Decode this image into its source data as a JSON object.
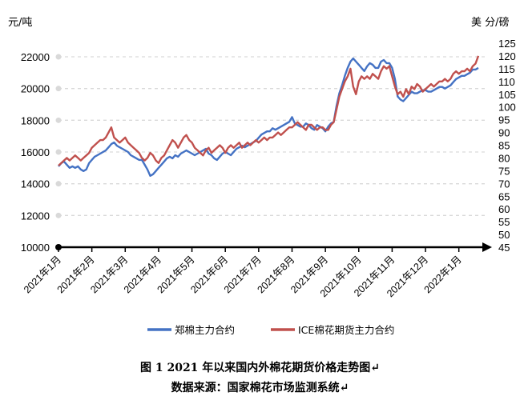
{
  "caption": {
    "title": "图 1 2021 年以来国内外棉花期货价格走势图↵",
    "source": "数据来源：国家棉花市场监测系统↵"
  },
  "chart_data": {
    "type": "line",
    "title": "",
    "y_left": {
      "label": "元/吨",
      "min": 10000,
      "max": 23000,
      "ticks": [
        10000,
        12000,
        14000,
        16000,
        18000,
        20000,
        22000
      ]
    },
    "y_right": {
      "label": "美 分/磅",
      "min": 45,
      "max": 125,
      "ticks": [
        45,
        50,
        55,
        60,
        65,
        70,
        75,
        80,
        85,
        90,
        95,
        100,
        105,
        110,
        115,
        120,
        125
      ]
    },
    "x_categories": [
      "2021年1月",
      "2021年2月",
      "2021年3月",
      "2021年4月",
      "2021年5月",
      "2021年6月",
      "2021年7月",
      "2021年8月",
      "2021年9月",
      "2021年10月",
      "2021年11月",
      "2021年12月",
      "2022年1月"
    ],
    "grid": true,
    "legend_position": "bottom",
    "series": [
      {
        "name": "郑棉主力合约",
        "axis": "left",
        "color": "#4472C4",
        "x": [
          0.0,
          0.1,
          0.2,
          0.3,
          0.4,
          0.5,
          0.6,
          0.7,
          0.8,
          0.9,
          1.0,
          1.1,
          1.2,
          1.3,
          1.4,
          1.5,
          1.6,
          1.7,
          1.8,
          1.9,
          2.0,
          2.1,
          2.2,
          2.3,
          2.4,
          2.5,
          2.6,
          2.7,
          2.8,
          2.9,
          3.0,
          3.1,
          3.2,
          3.3,
          3.4,
          3.5,
          3.6,
          3.7,
          3.8,
          3.9,
          4.0,
          4.1,
          4.2,
          4.3,
          4.4,
          4.5,
          4.6,
          4.7,
          4.8,
          4.9,
          5.0,
          5.1,
          5.2,
          5.3,
          5.4,
          5.5,
          5.6,
          5.7,
          5.8,
          5.9,
          6.0,
          6.1,
          6.2,
          6.3,
          6.4,
          6.5,
          6.6,
          6.7,
          6.8,
          6.9,
          7.0,
          7.1,
          7.2,
          7.3,
          7.4,
          7.5,
          7.6,
          7.7,
          7.8,
          7.9,
          8.0,
          8.1,
          8.2,
          8.3,
          8.4,
          8.5,
          8.6,
          8.7,
          8.8,
          8.9,
          9.0,
          9.1,
          9.2,
          9.3,
          9.4,
          9.5,
          9.6,
          9.7,
          9.8,
          9.9,
          10.0,
          10.1,
          10.2,
          10.3,
          10.4,
          10.5,
          10.6,
          10.7,
          10.8,
          10.9,
          11.0,
          11.1,
          11.2,
          11.3,
          11.4,
          11.5,
          11.6,
          11.7,
          11.8,
          11.9,
          12.0,
          12.1,
          12.2,
          12.3,
          12.4,
          12.5,
          12.6,
          12.7
        ],
        "y": [
          15100,
          15300,
          15400,
          15200,
          15000,
          15100,
          15000,
          15100,
          14900,
          14800,
          14900,
          15300,
          15500,
          15700,
          15800,
          15900,
          16000,
          16100,
          16300,
          16500,
          16600,
          16400,
          16300,
          16200,
          16100,
          16000,
          15800,
          15700,
          15600,
          15500,
          15500,
          15200,
          14900,
          14500,
          14600,
          14800,
          15000,
          15200,
          15400,
          15600,
          15700,
          15600,
          15800,
          15700,
          15900,
          16000,
          16100,
          16000,
          15900,
          15800,
          15900,
          16000,
          16100,
          16200,
          15900,
          15800,
          15600,
          15500,
          15700,
          15900,
          16000,
          15900,
          15800,
          16000,
          16200,
          16300,
          16400,
          16300,
          16400,
          16500,
          16600,
          16700,
          16900,
          17100,
          17200,
          17300,
          17300,
          17500,
          17400,
          17500,
          17600,
          17700,
          17800,
          17900,
          18200,
          17800,
          17700,
          17600,
          17600,
          17800,
          17700,
          17500,
          17400,
          17700,
          17600,
          17500,
          17300,
          17600,
          17800,
          17900,
          18900,
          19700,
          20200,
          20800,
          21300,
          21700,
          21900,
          21700,
          21500,
          21300,
          21100,
          21400,
          21600,
          21500,
          21300,
          21300,
          21700,
          21800,
          21600,
          21600,
          21300,
          20600,
          19500,
          19300,
          19200,
          19400,
          19600,
          19800
        ],
        "x2": [
          12.8,
          12.9,
          13.0,
          13.1,
          13.2,
          13.3,
          13.4,
          13.5,
          13.6,
          13.7,
          13.8,
          13.9,
          14.0,
          14.1,
          14.2,
          14.3,
          14.4,
          14.5,
          14.6,
          14.7,
          14.8,
          14.9,
          15.0,
          15.1
        ],
        "y2": [
          19700,
          19700,
          19800,
          19900,
          19900,
          19800,
          19800,
          19900,
          20000,
          20100,
          20100,
          20000,
          20100,
          20200,
          20400,
          20600,
          20700,
          20800,
          20800,
          20900,
          21000,
          21200,
          21200,
          21300
        ]
      },
      {
        "name": "ICE棉花期货主力合约",
        "axis": "right",
        "color": "#C0504D",
        "x": [
          0.0,
          0.1,
          0.2,
          0.3,
          0.4,
          0.5,
          0.6,
          0.7,
          0.8,
          0.9,
          1.0,
          1.1,
          1.2,
          1.3,
          1.4,
          1.5,
          1.6,
          1.7,
          1.8,
          1.9,
          2.0,
          2.1,
          2.2,
          2.3,
          2.4,
          2.5,
          2.6,
          2.7,
          2.8,
          2.9,
          3.0,
          3.1,
          3.2,
          3.3,
          3.4,
          3.5,
          3.6,
          3.7,
          3.8,
          3.9,
          4.0,
          4.1,
          4.2,
          4.3,
          4.4,
          4.5,
          4.6,
          4.7,
          4.8,
          4.9,
          5.0,
          5.1,
          5.2,
          5.3,
          5.4,
          5.5,
          5.6,
          5.7,
          5.8,
          5.9,
          6.0,
          6.1,
          6.2,
          6.3,
          6.4,
          6.5,
          6.6,
          6.7,
          6.8,
          6.9,
          7.0,
          7.1,
          7.2,
          7.3,
          7.4,
          7.5,
          7.6,
          7.7,
          7.8,
          7.9,
          8.0,
          8.1,
          8.2,
          8.3,
          8.4,
          8.5,
          8.6,
          8.7,
          8.8,
          8.9,
          9.0,
          9.1,
          9.2,
          9.3,
          9.4,
          9.5,
          9.6,
          9.7,
          9.8,
          9.9,
          10.0,
          10.1,
          10.2,
          10.3,
          10.4,
          10.5,
          10.6,
          10.7,
          10.8,
          10.9,
          11.0,
          11.1,
          11.2,
          11.3,
          11.4,
          11.5,
          11.6,
          11.7,
          11.8,
          11.9,
          12.0,
          12.1,
          12.2,
          12.3,
          12.4,
          12.5,
          12.6,
          12.7
        ],
        "y": [
          77,
          78,
          79,
          80,
          79,
          80,
          81,
          80,
          79,
          80,
          81,
          82,
          84,
          85,
          86,
          87,
          87,
          88,
          90,
          92,
          88,
          87,
          86,
          87,
          88,
          86,
          85,
          84,
          83,
          82,
          80,
          79,
          80,
          82,
          81,
          79,
          78,
          80,
          81,
          83,
          85,
          87,
          86,
          84,
          86,
          88,
          89,
          87,
          86,
          84,
          83,
          82,
          81,
          83,
          84,
          82,
          83,
          84,
          85,
          84,
          82,
          84,
          85,
          84,
          85,
          86,
          84,
          85,
          86,
          85,
          86,
          87,
          86,
          87,
          88,
          87,
          88,
          88,
          89,
          90,
          89,
          90,
          91,
          92,
          92,
          93,
          94,
          93,
          92,
          91,
          93,
          93,
          92,
          91,
          92,
          92,
          91,
          91,
          93,
          94,
          99,
          104,
          107,
          110,
          112,
          115,
          108,
          105,
          110,
          112,
          111,
          112,
          111,
          113,
          112,
          111,
          114,
          116,
          115,
          116,
          112,
          108,
          105,
          106,
          104,
          107,
          105,
          108
        ],
        "x2": [
          12.8,
          12.9,
          13.0,
          13.1,
          13.2,
          13.3,
          13.4,
          13.5,
          13.6,
          13.7,
          13.8,
          13.9,
          14.0,
          14.1,
          14.2,
          14.3,
          14.4,
          14.5,
          14.6,
          14.7,
          14.8,
          14.9,
          15.0,
          15.1
        ],
        "y2": [
          107,
          109,
          108,
          106,
          107,
          108,
          109,
          108,
          109,
          110,
          110,
          111,
          110,
          111,
          113,
          114,
          113,
          114,
          114,
          115,
          114,
          116,
          117,
          120
        ]
      }
    ]
  }
}
